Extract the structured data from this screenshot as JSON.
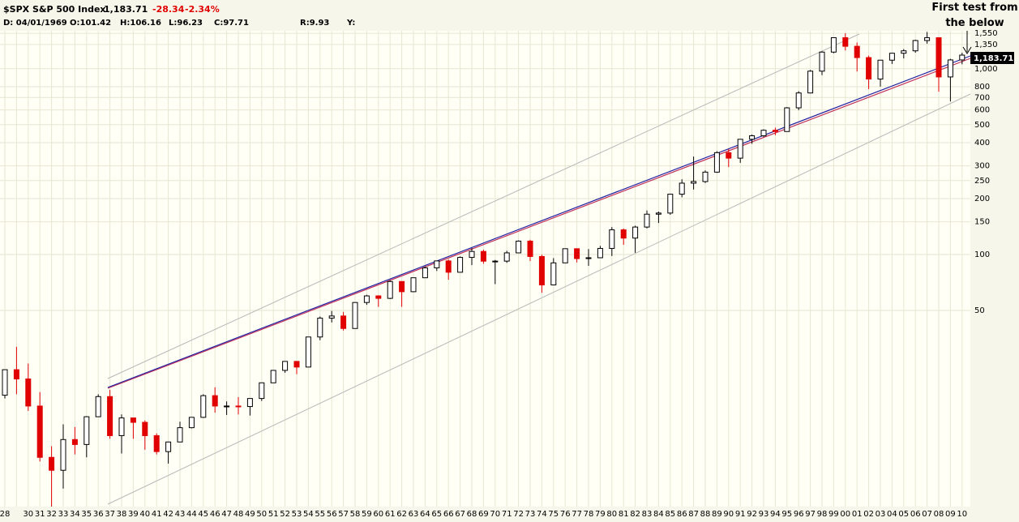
{
  "header": {
    "title": "$SPX S&P 500 Index",
    "last": "1,183.71",
    "change": "-28.34",
    "change_pct": "-2.34%",
    "date": "D: 04/01/1969",
    "open": "O:101.42",
    "high": "H:106.16",
    "low": "L:96.23",
    "close": "C:97.71",
    "r": "R:9.93",
    "y": "Y:"
  },
  "chart_data": {
    "type": "candlestick",
    "log_scale": true,
    "grid": true,
    "up_color": "#000000",
    "down_color": "#e00000",
    "annotation": "First test from the below",
    "last_price_label": "1,183.71",
    "categories": [
      "28",
      null,
      "30",
      "31",
      "32",
      "33",
      "34",
      "35",
      "36",
      "37",
      "38",
      "39",
      "40",
      "41",
      "42",
      "43",
      "44",
      "45",
      "46",
      "47",
      "48",
      "49",
      "50",
      "51",
      "52",
      "53",
      "54",
      "55",
      "56",
      "57",
      "58",
      "59",
      "60",
      "61",
      "62",
      "63",
      "64",
      "65",
      "66",
      "67",
      "68",
      "69",
      "70",
      "71",
      "72",
      "73",
      "74",
      "75",
      "76",
      "77",
      "78",
      "79",
      "80",
      "81",
      "82",
      "83",
      "84",
      "85",
      "86",
      "87",
      "88",
      "89",
      "90",
      "91",
      "92",
      "93",
      "94",
      "95",
      "96",
      "97",
      "98",
      "99",
      "00",
      "01",
      "02",
      "03",
      "04",
      "05",
      "06",
      "07",
      "08",
      "09",
      "10"
    ],
    "open": [
      17.5,
      24,
      21.4,
      15.3,
      8.1,
      6.9,
      10.1,
      9.5,
      13.4,
      17.2,
      10.6,
      13.2,
      12.5,
      10.6,
      8.7,
      9.8,
      11.7,
      13.3,
      17.4,
      15.3,
      15.3,
      15.2,
      16.8,
      20.4,
      23.8,
      26.6,
      24.8,
      36,
      45.5,
      46.7,
      40,
      55.2,
      59.9,
      58.1,
      71.6,
      63.1,
      75,
      84.8,
      92.4,
      80.3,
      96.5,
      103.9,
      92.1,
      92.2,
      102.1,
      118.1,
      97.6,
      68.6,
      90.2,
      107.5,
      95.1,
      96.1,
      107.9,
      135.8,
      122.6,
      140.6,
      164.9,
      167.2,
      211.3,
      242.2,
      247.1,
      277.7,
      353.4,
      330.2,
      417.1,
      435.7,
      466.5,
      459.3,
      615.9,
      740.7,
      970.4,
      1229.2,
      1469.3,
      1320.3,
      1148.1,
      879.8,
      1111.9,
      1211.9,
      1248.3,
      1418.3,
      1468.4,
      903.3,
      1115.1
    ],
    "high": [
      24,
      31.9,
      25.9,
      18.2,
      9.3,
      12.2,
      11.8,
      13.5,
      17.7,
      18.7,
      13.8,
      13.2,
      12.8,
      10.9,
      9.8,
      12.6,
      13.3,
      17.7,
      19.3,
      16.2,
      17.1,
      16.8,
      20.4,
      23.9,
      26.6,
      26.7,
      36,
      46.4,
      49.7,
      49.1,
      55.2,
      60.7,
      60.4,
      72.6,
      71.6,
      75,
      86.3,
      92.6,
      94.1,
      97.6,
      108.4,
      106.2,
      93.5,
      104.8,
      119.1,
      120.2,
      99.8,
      95.6,
      107.8,
      107.9,
      107,
      111.3,
      140.5,
      138.1,
      143,
      172.7,
      170.4,
      212,
      254,
      336.8,
      283.7,
      359.8,
      369.8,
      418.3,
      442.7,
      471.3,
      482,
      621.7,
      757,
      983.8,
      1241.8,
      1469.3,
      1552.9,
      1383.4,
      1176.9,
      1111.9,
      1217.3,
      1275.8,
      1431.8,
      1576.1,
      1471.8,
      1130.4,
      1219.8
    ],
    "low": [
      16.8,
      17.7,
      14.4,
      7.7,
      4.4,
      5.5,
      8.4,
      8.1,
      13.4,
      10.2,
      8.5,
      10.2,
      8.9,
      8.4,
      7.5,
      9.8,
      11.6,
      13.2,
      14.1,
      13.7,
      13.8,
      13.6,
      16.3,
      20.4,
      23.1,
      22.7,
      24.8,
      34.6,
      43.1,
      39,
      40,
      53.6,
      52.3,
      57.6,
      52.3,
      62.7,
      75,
      81.6,
      73.2,
      80.3,
      87.7,
      89.2,
      69.3,
      90.2,
      101.7,
      92.2,
      62.3,
      68.6,
      90.2,
      90.7,
      86.9,
      96.1,
      98.2,
      112.8,
      102.2,
      138.3,
      147.8,
      163.7,
      203.5,
      223.9,
      242.6,
      275.3,
      295.5,
      311.5,
      394.5,
      429,
      438.9,
      459.1,
      598.5,
      737,
      923.3,
      1212.2,
      1254.1,
      965.8,
      776.8,
      800.7,
      1060.7,
      1136.2,
      1219.3,
      1364,
      752.4,
      666.8,
      1056.7
    ],
    "close": [
      24,
      21.4,
      15.3,
      8.1,
      6.9,
      10.1,
      9.5,
      13.4,
      17.2,
      10.6,
      13.2,
      12.5,
      10.6,
      8.7,
      9.8,
      11.7,
      13.3,
      17.4,
      15.3,
      15.3,
      15.2,
      16.8,
      20.4,
      23.8,
      26.6,
      24.8,
      36,
      45.5,
      46.7,
      40,
      55.2,
      59.9,
      58.1,
      71.6,
      63.1,
      75,
      84.8,
      92.4,
      80.3,
      96.5,
      103.9,
      92.1,
      92.2,
      102.1,
      118.1,
      97.6,
      68.6,
      90.2,
      107.5,
      95.1,
      96.1,
      107.9,
      135.8,
      122.6,
      140.6,
      164.9,
      167.2,
      211.3,
      242.2,
      247.1,
      277.7,
      353.4,
      330.2,
      417.1,
      435.7,
      466.5,
      459.3,
      615.9,
      740.7,
      970.4,
      1229.2,
      1469.3,
      1320.3,
      1148.1,
      879.8,
      1111.9,
      1211.9,
      1248.3,
      1418.3,
      1468.4,
      903.3,
      1115.1,
      1183.7
    ],
    "ylim": [
      4.4,
      1600
    ],
    "yticks": [
      {
        "value": 1550,
        "label": "1,550"
      },
      {
        "value": 1350,
        "label": "1,350"
      },
      {
        "value": 1000,
        "label": "1,000"
      },
      800,
      700,
      600,
      500,
      400,
      300,
      250,
      200,
      150,
      100,
      50
    ]
  }
}
